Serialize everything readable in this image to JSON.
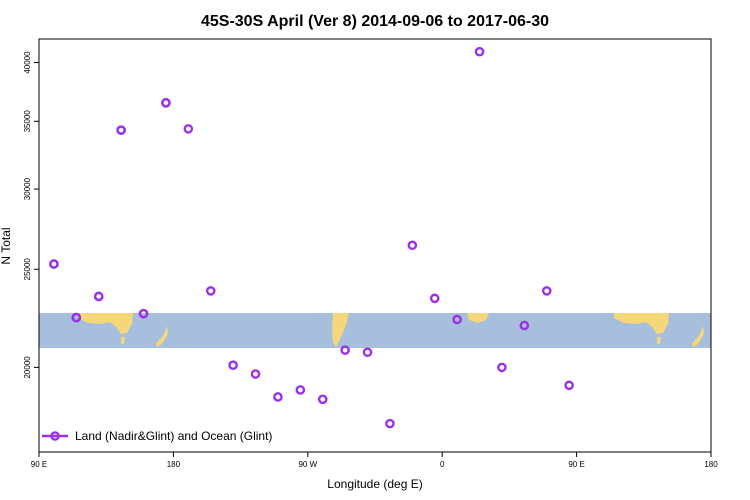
{
  "chart_data": {
    "type": "scatter",
    "title": "45S-30S April (Ver 8)   2014-09-06 to 2017-06-30",
    "xlabel": "Longitude (deg E)",
    "ylabel": "N Total",
    "x_tick_labels": [
      "90 E",
      "180",
      "90 W",
      "0",
      "90 E",
      "180"
    ],
    "y_tick_labels": [
      "20000",
      "25000",
      "30000",
      "35000",
      "40000"
    ],
    "series": [
      {
        "name": "Land (Nadir&Glint) and Ocean (Glint)",
        "color": "#9b30e8",
        "marker": "open-circle",
        "points": [
          {
            "x": 100,
            "y": 25300
          },
          {
            "x": 115,
            "y": 22400
          },
          {
            "x": 130,
            "y": 23500
          },
          {
            "x": 145,
            "y": 34300
          },
          {
            "x": 160,
            "y": 22600
          },
          {
            "x": 175,
            "y": 36500
          },
          {
            "x": 190,
            "y": 34400
          },
          {
            "x": 205,
            "y": 23800
          },
          {
            "x": 220,
            "y": 20100
          },
          {
            "x": 235,
            "y": 19700
          },
          {
            "x": 250,
            "y": 18700
          },
          {
            "x": 265,
            "y": 19000
          },
          {
            "x": 280,
            "y": 18600
          },
          {
            "x": 295,
            "y": 20800
          },
          {
            "x": 310,
            "y": 20700
          },
          {
            "x": 325,
            "y": 17600
          },
          {
            "x": 340,
            "y": 26400
          },
          {
            "x": 355,
            "y": 23400
          },
          {
            "x": 10,
            "y": 22300
          },
          {
            "x": 25,
            "y": 41000
          },
          {
            "x": 40,
            "y": 20000
          },
          {
            "x": 55,
            "y": 22000
          },
          {
            "x": 70,
            "y": 23800
          },
          {
            "x": 85,
            "y": 19200
          },
          {
            "x": 100,
            "y": 25300
          },
          {
            "x": 115,
            "y": 22400
          },
          {
            "x": 130,
            "y": 23500
          },
          {
            "x": 145,
            "y": 34300
          },
          {
            "x": 160,
            "y": 22600
          },
          {
            "x": 175,
            "y": 36500
          }
        ]
      }
    ],
    "legend_position": "bottom-left",
    "grid": false,
    "background_map": {
      "band_color": "#a8bedd",
      "land_color": "#f5d77a"
    }
  }
}
